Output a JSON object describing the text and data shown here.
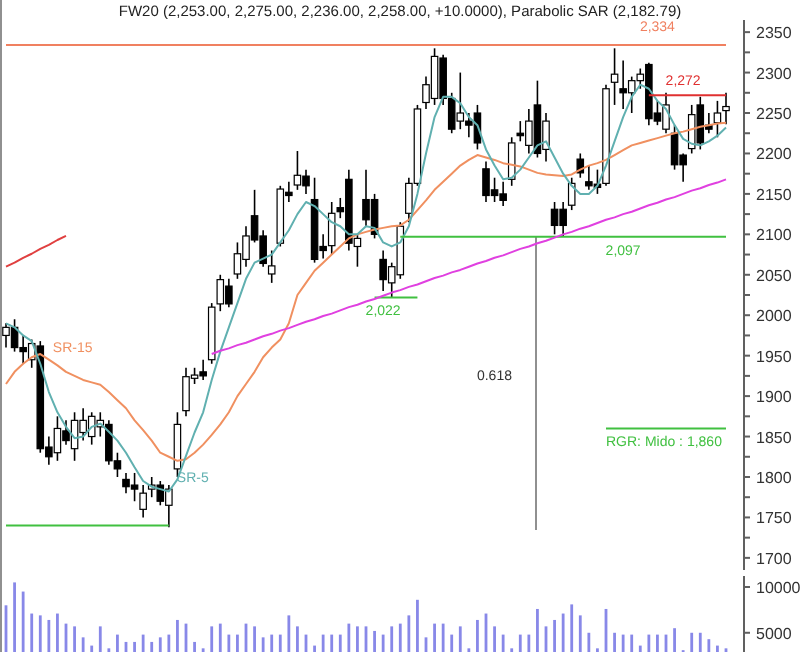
{
  "chart_data": [
    {
      "type": "candlestick",
      "title": "FW20 (2,253.00, 2,275.00, 2,236.00, 2,258.00, +10.0000), Parabolic SAR (2,182.79)",
      "categories": [
        null,
        null,
        null,
        null,
        null,
        null,
        null,
        null,
        null,
        null,
        null,
        null,
        null,
        null,
        null,
        null,
        null,
        null,
        null,
        null,
        null,
        null,
        null,
        null,
        null,
        null,
        null,
        null,
        null,
        null,
        null,
        null,
        null,
        null,
        null,
        null,
        null,
        null,
        null,
        null,
        null,
        null,
        null,
        null,
        null,
        null,
        null,
        null,
        null,
        null,
        null,
        null,
        null,
        null,
        null,
        null,
        null,
        null,
        null,
        null,
        null,
        null,
        null,
        null,
        null,
        null,
        null,
        null,
        null,
        null,
        null,
        null,
        null,
        null,
        null,
        null,
        null,
        null,
        null,
        null,
        null,
        null,
        null,
        null,
        null
      ],
      "ohlc": [
        [
          1975,
          1990,
          1960,
          1985
        ],
        [
          1985,
          1995,
          1955,
          1960
        ],
        [
          1960,
          1975,
          1940,
          1955
        ],
        [
          1945,
          1970,
          1935,
          1965
        ],
        [
          1962,
          1968,
          1830,
          1835
        ],
        [
          1837,
          1850,
          1815,
          1825
        ],
        [
          1830,
          1875,
          1820,
          1860
        ],
        [
          1857,
          1870,
          1840,
          1845
        ],
        [
          1835,
          1880,
          1820,
          1870
        ],
        [
          1855,
          1885,
          1845,
          1870
        ],
        [
          1850,
          1880,
          1840,
          1875
        ],
        [
          1862,
          1880,
          1850,
          1870
        ],
        [
          1865,
          1870,
          1815,
          1820
        ],
        [
          1820,
          1830,
          1800,
          1810
        ],
        [
          1797,
          1805,
          1780,
          1788
        ],
        [
          1790,
          1805,
          1770,
          1785
        ],
        [
          1760,
          1790,
          1750,
          1780
        ],
        [
          1785,
          1800,
          1775,
          1790
        ],
        [
          1790,
          1795,
          1765,
          1770
        ],
        [
          1765,
          1790,
          1738,
          1785
        ],
        [
          1810,
          1880,
          1800,
          1865
        ],
        [
          1882,
          1935,
          1875,
          1924
        ],
        [
          1922,
          1935,
          1915,
          1926
        ],
        [
          1930,
          1945,
          1920,
          1925
        ],
        [
          1945,
          2015,
          1940,
          2010
        ],
        [
          2014,
          2050,
          2005,
          2044
        ],
        [
          2036,
          2045,
          2010,
          2014
        ],
        [
          2051,
          2090,
          2045,
          2076
        ],
        [
          2069,
          2110,
          2060,
          2098
        ],
        [
          2123,
          2155,
          2090,
          2093
        ],
        [
          2098,
          2105,
          2060,
          2064
        ],
        [
          2051,
          2080,
          2040,
          2061
        ],
        [
          2089,
          2160,
          2085,
          2156
        ],
        [
          2152,
          2165,
          2140,
          2148
        ],
        [
          2161,
          2203,
          2155,
          2173
        ],
        [
          2172,
          2180,
          2150,
          2160
        ],
        [
          2143,
          2170,
          2065,
          2069
        ],
        [
          2085,
          2100,
          2070,
          2080
        ],
        [
          2086,
          2140,
          2075,
          2126
        ],
        [
          2133,
          2145,
          2120,
          2128
        ],
        [
          2168,
          2180,
          2080,
          2089
        ],
        [
          2085,
          2100,
          2060,
          2095
        ],
        [
          2143,
          2180,
          2110,
          2118
        ],
        [
          2143,
          2150,
          2095,
          2100
        ],
        [
          2069,
          2080,
          2030,
          2044
        ],
        [
          2040,
          2065,
          2022,
          2060
        ],
        [
          2050,
          2115,
          2045,
          2110
        ],
        [
          2126,
          2170,
          2115,
          2163
        ],
        [
          2163,
          2260,
          2160,
          2255
        ],
        [
          2263,
          2295,
          2255,
          2285
        ],
        [
          2268,
          2330,
          2260,
          2320
        ],
        [
          2318,
          2322,
          2260,
          2268
        ],
        [
          2268,
          2275,
          2225,
          2230
        ],
        [
          2240,
          2300,
          2230,
          2250
        ],
        [
          2240,
          2250,
          2220,
          2235
        ],
        [
          2250,
          2260,
          2205,
          2213
        ],
        [
          2181,
          2190,
          2140,
          2148
        ],
        [
          2155,
          2170,
          2140,
          2148
        ],
        [
          2150,
          2165,
          2135,
          2142
        ],
        [
          2168,
          2220,
          2160,
          2213
        ],
        [
          2225,
          2240,
          2215,
          2222
        ],
        [
          2210,
          2255,
          2200,
          2240
        ],
        [
          2260,
          2290,
          2195,
          2200
        ],
        [
          2205,
          2250,
          2190,
          2240
        ],
        [
          2131,
          2140,
          2100,
          2111
        ],
        [
          2131,
          2140,
          2098,
          2111
        ],
        [
          2136,
          2170,
          2130,
          2163
        ],
        [
          2193,
          2200,
          2170,
          2176
        ],
        [
          2165,
          2185,
          2155,
          2160
        ],
        [
          2162,
          2180,
          2150,
          2158
        ],
        [
          2163,
          2285,
          2160,
          2280
        ],
        [
          2288,
          2330,
          2260,
          2298
        ],
        [
          2280,
          2315,
          2255,
          2275
        ],
        [
          2275,
          2295,
          2250,
          2290
        ],
        [
          2290,
          2305,
          2280,
          2298
        ],
        [
          2310,
          2312,
          2235,
          2243
        ],
        [
          2250,
          2265,
          2235,
          2240
        ],
        [
          2230,
          2275,
          2225,
          2260
        ],
        [
          2225,
          2235,
          2180,
          2186
        ],
        [
          2198,
          2200,
          2165,
          2186
        ],
        [
          2206,
          2260,
          2200,
          2248
        ],
        [
          2260,
          2270,
          2205,
          2213
        ],
        [
          2235,
          2250,
          2225,
          2230
        ],
        [
          2238,
          2265,
          2220,
          2250
        ],
        [
          2253,
          2275,
          2236,
          2258
        ]
      ],
      "series": [
        {
          "type": "line",
          "name": "SR-15",
          "color": "#f09060",
          "values": [
            1915,
            1930,
            1940,
            1948,
            1952,
            1945,
            1938,
            1930,
            1925,
            1920,
            1917,
            1914,
            1905,
            1895,
            1885,
            1870,
            1858,
            1845,
            1830,
            1825,
            1820,
            1822,
            1830,
            1840,
            1852,
            1865,
            1880,
            1900,
            1915,
            1930,
            1948,
            1960,
            1970,
            1990,
            2025,
            2040,
            2055,
            2065,
            2075,
            2085,
            2095,
            2100,
            2103,
            2106,
            2108,
            2110,
            2111,
            2118,
            2130,
            2142,
            2155,
            2165,
            2175,
            2185,
            2192,
            2198,
            2195,
            2192,
            2188,
            2186,
            2184,
            2180,
            2176,
            2174,
            2173,
            2172,
            2174,
            2180,
            2185,
            2188,
            2192,
            2198,
            2204,
            2210,
            2213,
            2216,
            2219,
            2222,
            2225,
            2227,
            2230,
            2233,
            2235,
            2237,
            2238
          ]
        },
        {
          "type": "line",
          "name": "SR-5",
          "color": "#60b0b0",
          "values": [
            1990,
            1985,
            1975,
            1968,
            1940,
            1905,
            1880,
            1862,
            1848,
            1850,
            1862,
            1866,
            1856,
            1845,
            1830,
            1812,
            1795,
            1788,
            1785,
            1782,
            1797,
            1826,
            1855,
            1880,
            1920,
            1955,
            1985,
            2015,
            2045,
            2065,
            2070,
            2075,
            2090,
            2105,
            2125,
            2140,
            2135,
            2125,
            2115,
            2110,
            2100,
            2100,
            2110,
            2108,
            2090,
            2085,
            2090,
            2110,
            2150,
            2200,
            2245,
            2270,
            2270,
            2262,
            2245,
            2235,
            2205,
            2185,
            2168,
            2170,
            2180,
            2195,
            2210,
            2215,
            2195,
            2175,
            2160,
            2150,
            2150,
            2160,
            2185,
            2215,
            2245,
            2270,
            2285,
            2280,
            2265,
            2255,
            2235,
            2218,
            2212,
            2210,
            2215,
            2222,
            2232
          ]
        },
        {
          "type": "line",
          "name": "2,334",
          "color": "#f08060",
          "values": [
            2334,
            2334,
            2334,
            2334,
            2334,
            2334,
            2334,
            2334,
            2334,
            2334,
            2334,
            2334,
            2334,
            2334,
            2334,
            2334,
            2334,
            2334,
            2334,
            2334,
            2334,
            2334,
            2334,
            2334,
            2334,
            2334,
            2334,
            2334,
            2334,
            2334,
            2334,
            2334,
            2334,
            2334,
            2334,
            2334,
            2334,
            2334,
            2334,
            2334,
            2334,
            2334,
            2334,
            2334,
            2334,
            2334,
            2334,
            2334,
            2334,
            2334,
            2334,
            2334,
            2334,
            2334,
            2334,
            2334,
            2334,
            2334,
            2334,
            2334,
            2334,
            2334,
            2334,
            2334,
            2334,
            2334,
            2334,
            2334,
            2334,
            2334,
            2334,
            2334,
            2334,
            2334,
            2334,
            2334,
            2334,
            2334,
            2334,
            2334,
            2334,
            2334,
            2334,
            2334,
            2334
          ]
        },
        {
          "type": "line",
          "name": "2,272",
          "color": "#e03030",
          "values": [
            null,
            null,
            null,
            null,
            null,
            null,
            null,
            null,
            null,
            null,
            null,
            null,
            null,
            null,
            null,
            null,
            null,
            null,
            null,
            null,
            null,
            null,
            null,
            null,
            null,
            null,
            null,
            null,
            null,
            null,
            null,
            null,
            null,
            null,
            null,
            null,
            null,
            null,
            null,
            null,
            null,
            null,
            null,
            null,
            null,
            null,
            null,
            null,
            null,
            null,
            null,
            null,
            null,
            null,
            null,
            null,
            null,
            null,
            null,
            null,
            null,
            null,
            null,
            null,
            null,
            null,
            null,
            null,
            null,
            null,
            null,
            null,
            null,
            null,
            null,
            2272,
            2272,
            2272,
            2272,
            2272,
            2272,
            2272,
            2272,
            2272,
            2272
          ]
        },
        {
          "type": "line",
          "name": "2,097",
          "color": "#40c040",
          "values": [
            null,
            null,
            null,
            null,
            null,
            null,
            null,
            null,
            null,
            null,
            null,
            null,
            null,
            null,
            null,
            null,
            null,
            null,
            null,
            null,
            null,
            null,
            null,
            null,
            null,
            null,
            null,
            null,
            null,
            null,
            null,
            null,
            null,
            null,
            null,
            null,
            null,
            null,
            null,
            null,
            null,
            null,
            null,
            null,
            null,
            null,
            2097,
            2097,
            2097,
            2097,
            2097,
            2097,
            2097,
            2097,
            2097,
            2097,
            2097,
            2097,
            2097,
            2097,
            2097,
            2097,
            2097,
            2097,
            2097,
            2097,
            2097,
            2097,
            2097,
            2097,
            2097,
            2097,
            2097,
            2097,
            2097,
            2097,
            2097,
            2097,
            2097,
            2097,
            2097,
            2097,
            2097,
            2097,
            2097
          ]
        },
        {
          "type": "line",
          "name": "2,022",
          "color": "#40c040",
          "values": [
            null,
            null,
            null,
            null,
            null,
            null,
            null,
            null,
            null,
            null,
            null,
            null,
            null,
            null,
            null,
            null,
            null,
            null,
            null,
            null,
            null,
            null,
            null,
            null,
            null,
            null,
            null,
            null,
            null,
            null,
            null,
            null,
            null,
            null,
            null,
            null,
            null,
            null,
            null,
            null,
            null,
            null,
            null,
            2022,
            2022,
            2022,
            2022,
            2022,
            2022,
            null,
            null,
            null,
            null,
            null,
            null,
            null,
            null,
            null,
            null,
            null,
            null,
            null,
            null,
            null,
            null,
            null,
            null,
            null,
            null,
            null,
            null,
            null,
            null,
            null,
            null,
            null,
            null,
            null,
            null,
            null,
            null,
            null,
            null,
            null,
            null
          ]
        },
        {
          "type": "line",
          "color": "#40c040",
          "values": [
            1740,
            1740,
            1740,
            1740,
            1740,
            1740,
            1740,
            1740,
            1740,
            1740,
            1740,
            1740,
            1740,
            1740,
            1740,
            1740,
            1740,
            1740,
            1740,
            1740,
            null,
            null,
            null,
            null,
            null,
            null,
            null,
            null,
            null,
            null,
            null,
            null,
            null,
            null,
            null,
            null,
            null,
            null,
            null,
            null,
            null,
            null,
            null,
            null,
            null,
            null,
            null,
            null,
            null,
            null,
            null,
            null,
            null,
            null,
            null,
            null,
            null,
            null,
            null,
            null,
            null,
            null,
            null,
            null,
            null,
            null,
            null,
            null,
            null,
            null,
            null,
            null,
            null,
            null,
            null,
            null,
            null,
            null,
            null,
            null,
            null,
            null,
            null,
            null,
            null
          ]
        },
        {
          "type": "line",
          "name": "RGR: Mido : 1,860",
          "color": "#40c040",
          "values": [
            null,
            null,
            null,
            null,
            null,
            null,
            null,
            null,
            null,
            null,
            null,
            null,
            null,
            null,
            null,
            null,
            null,
            null,
            null,
            null,
            null,
            null,
            null,
            null,
            null,
            null,
            null,
            null,
            null,
            null,
            null,
            null,
            null,
            null,
            null,
            null,
            null,
            null,
            null,
            null,
            null,
            null,
            null,
            null,
            null,
            null,
            null,
            null,
            null,
            null,
            null,
            null,
            null,
            null,
            null,
            null,
            null,
            null,
            null,
            null,
            null,
            null,
            null,
            null,
            null,
            null,
            null,
            null,
            null,
            null,
            1860,
            1860,
            1860,
            1860,
            1860,
            1860,
            1860,
            1860,
            1860,
            1860,
            1860,
            1860,
            1860,
            1860,
            1860
          ]
        },
        {
          "type": "line",
          "color": "#e040e0",
          "values": [
            null,
            null,
            null,
            null,
            null,
            null,
            null,
            null,
            null,
            null,
            null,
            null,
            null,
            null,
            null,
            null,
            null,
            null,
            null,
            null,
            null,
            null,
            null,
            null,
            1952,
            1956,
            1959,
            1963,
            1966,
            1970,
            1974,
            1977,
            1981,
            1984,
            1988,
            1992,
            1995,
            1999,
            2002,
            2006,
            2010,
            2013,
            2017,
            2020,
            2024,
            2028,
            2031,
            2035,
            2038,
            2042,
            2046,
            2049,
            2053,
            2056,
            2060,
            2064,
            2067,
            2071,
            2074,
            2078,
            2082,
            2085,
            2089,
            2092,
            2096,
            2100,
            2103,
            2107,
            2110,
            2114,
            2118,
            2121,
            2125,
            2128,
            2132,
            2136,
            2139,
            2143,
            2146,
            2150,
            2154,
            2157,
            2161,
            2164,
            2168
          ]
        },
        {
          "type": "line",
          "color": "#e04040",
          "values": [
            2060,
            2065,
            2071,
            2076,
            2082,
            2087,
            2093,
            2098,
            null,
            null,
            null,
            null,
            null,
            null,
            null,
            null,
            null,
            null,
            null,
            null,
            null,
            null,
            null,
            null,
            null,
            null,
            null,
            null,
            null,
            null,
            null,
            null,
            null,
            null,
            null,
            null,
            null,
            null,
            null,
            null,
            null,
            null,
            null,
            null,
            null,
            null,
            null,
            null,
            null,
            null,
            null,
            null,
            null,
            null,
            null,
            null,
            null,
            null,
            null,
            null,
            null,
            null,
            null,
            null,
            null,
            null,
            null,
            null,
            null,
            null,
            null,
            null,
            null,
            null,
            null,
            null,
            null,
            null,
            null,
            null,
            null,
            null,
            null,
            null,
            null
          ]
        }
      ],
      "annotations": [
        "0.618"
      ],
      "ylim": [
        1685,
        2365
      ],
      "yticks": [
        1700,
        {
          "value": 1725,
          "label": null
        },
        1750,
        {
          "value": 1775,
          "label": null
        },
        1800,
        {
          "value": 1825,
          "label": null
        },
        1850,
        {
          "value": 1875,
          "label": null
        },
        1900,
        {
          "value": 1925,
          "label": null
        },
        1950,
        {
          "value": 1975,
          "label": null
        },
        2000,
        {
          "value": 2025,
          "label": null
        },
        2050,
        {
          "value": 2075,
          "label": null
        },
        2100,
        {
          "value": 2125,
          "label": null
        },
        2150,
        {
          "value": 2175,
          "label": null
        },
        2200,
        {
          "value": 2225,
          "label": null
        },
        2250,
        {
          "value": 2275,
          "label": null
        },
        2300,
        {
          "value": 2325,
          "label": null
        },
        2350
      ]
    },
    {
      "type": "bar",
      "color": "#8888e8",
      "categories": [
        null,
        null,
        null,
        null,
        null,
        null,
        null,
        null,
        null,
        null,
        null,
        null,
        null,
        null,
        null,
        null,
        null,
        null,
        null,
        null,
        null,
        null,
        null,
        null,
        null,
        null,
        null,
        null,
        null,
        null,
        null,
        null,
        null,
        null,
        null,
        null,
        null,
        null,
        null,
        null,
        null,
        null,
        null,
        null,
        null,
        null,
        null,
        null,
        null,
        null,
        null,
        null,
        null,
        null,
        null,
        null,
        null,
        null,
        null,
        null,
        null,
        null,
        null,
        null,
        null,
        null,
        null,
        null,
        null,
        null,
        null,
        null,
        null,
        null,
        null,
        null,
        null,
        null,
        null,
        null,
        null,
        null,
        null,
        null,
        null
      ],
      "values": [
        8000,
        10500,
        9500,
        7100,
        6900,
        6400,
        7100,
        6000,
        5700,
        4500,
        3600,
        5700,
        3300,
        4800,
        4000,
        4000,
        4800,
        4000,
        4500,
        4800,
        6400,
        6000,
        4000,
        3300,
        5700,
        6000,
        4800,
        4800,
        6000,
        5700,
        4500,
        4800,
        4800,
        6900,
        5700,
        4800,
        3600,
        4800,
        4800,
        4800,
        6000,
        5700,
        5700,
        5200,
        4800,
        5700,
        6000,
        6900,
        8600,
        4500,
        6000,
        6000,
        4800,
        5700,
        3300,
        6400,
        7100,
        5700,
        4800,
        3300,
        4800,
        4800,
        7600,
        5700,
        6400,
        7100,
        8100,
        6900,
        5000,
        3300,
        7600,
        5000,
        4800,
        4800,
        3600,
        4800,
        4800,
        4800,
        5500,
        3100,
        5000,
        5000,
        4300,
        3600,
        3300
      ],
      "ylim": [
        2900,
        11200
      ],
      "yticks": [
        5000,
        10000
      ]
    }
  ]
}
